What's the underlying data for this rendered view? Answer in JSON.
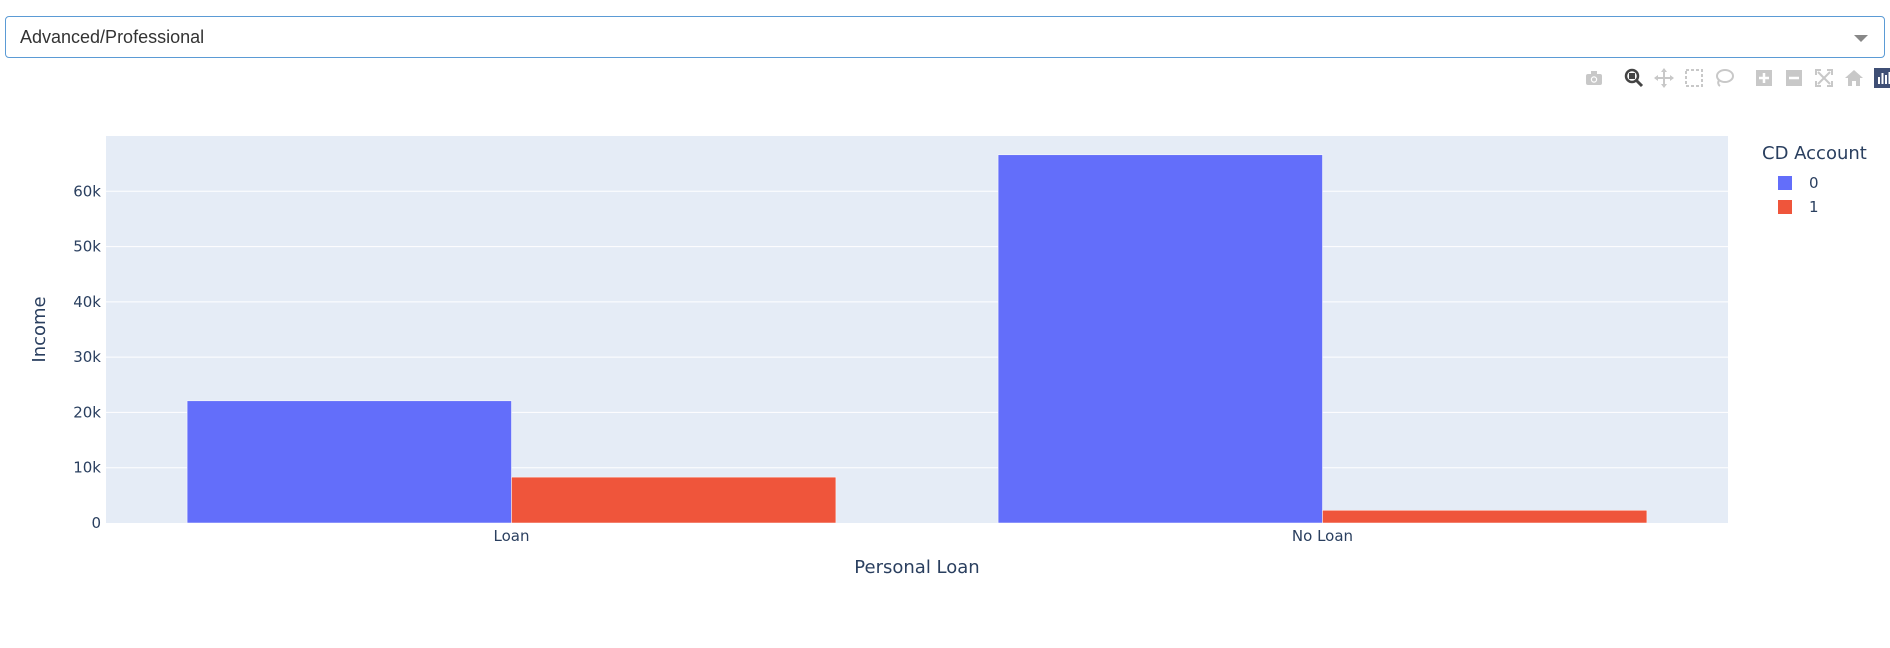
{
  "dropdown": {
    "value": "Advanced/Professional"
  },
  "modebar": {
    "icons": [
      "camera-icon",
      "zoom-icon",
      "pan-icon",
      "box-select-icon",
      "lasso-icon",
      "zoom-in-icon",
      "zoom-out-icon",
      "autoscale-icon",
      "home-icon",
      "plotly-logo-icon"
    ],
    "active_color": "#444444",
    "inactive_color": "#c8c8c8",
    "logo_color": "#3f4f75"
  },
  "colors": {
    "plot_bg": "#e5ecf6",
    "grid": "#ffffff",
    "series_0": "#636efa",
    "series_1": "#ef553b"
  },
  "chart_data": {
    "type": "bar",
    "barmode": "group",
    "categories": [
      "Loan",
      "No Loan"
    ],
    "series": [
      {
        "name": "0",
        "values": [
          22100,
          66600
        ]
      },
      {
        "name": "1",
        "values": [
          8300,
          2300
        ]
      }
    ],
    "xlabel": "Personal Loan",
    "ylabel": "Income",
    "ylim": [
      0,
      70000
    ],
    "yticks": [
      0,
      10000,
      20000,
      30000,
      40000,
      50000,
      60000
    ],
    "ytick_labels": [
      "0",
      "10k",
      "20k",
      "30k",
      "40k",
      "50k",
      "60k"
    ],
    "legend_title": "CD Account",
    "legend_position": "top-right",
    "grid": true
  }
}
